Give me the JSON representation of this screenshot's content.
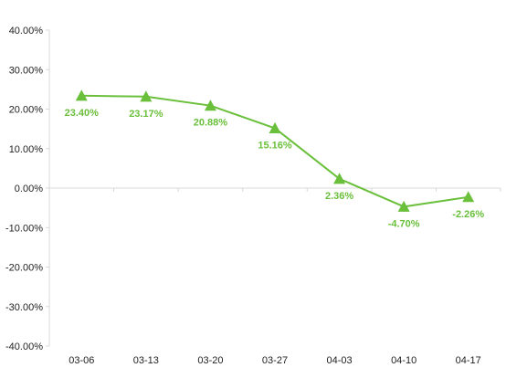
{
  "chart_data": {
    "type": "line",
    "title": "",
    "xlabel": "",
    "ylabel": "",
    "categories": [
      "03-06",
      "03-13",
      "03-20",
      "03-27",
      "04-03",
      "04-10",
      "04-17"
    ],
    "series": [
      {
        "values": [
          23.4,
          23.17,
          20.88,
          15.16,
          2.36,
          -4.7,
          -2.26
        ],
        "data_labels": [
          "23.40%",
          "23.17%",
          "20.88%",
          "15.16%",
          "2.36%",
          "-4.70%",
          "-2.26%"
        ],
        "marker": "triangle",
        "color": "#6abf3b"
      }
    ],
    "ylim": [
      -40,
      40
    ],
    "y_ticks": [
      40,
      30,
      20,
      10,
      0,
      -10,
      -20,
      -30,
      -40
    ],
    "y_tick_labels": [
      "40.00%",
      "30.00%",
      "20.00%",
      "10.00%",
      "0.00%",
      "-10.00%",
      "-20.00%",
      "-30.00%",
      "-40.00%"
    ],
    "grid": false,
    "legend": "none"
  }
}
